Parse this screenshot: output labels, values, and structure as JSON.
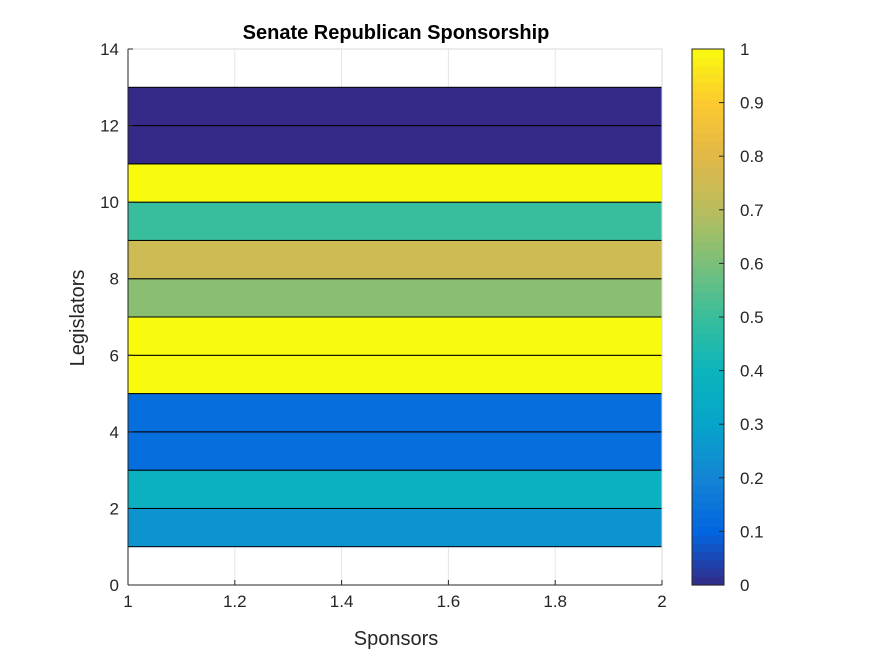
{
  "chart_data": {
    "type": "heatmap",
    "title": "Senate Republican Sponsorship",
    "xlabel": "Sponsors",
    "ylabel": "Legislators",
    "xlim": [
      1,
      2
    ],
    "ylim": [
      0,
      14
    ],
    "x_ticks": [
      "1",
      "1.2",
      "1.4",
      "1.6",
      "1.8",
      "2"
    ],
    "y_ticks": [
      "0",
      "2",
      "4",
      "6",
      "8",
      "10",
      "12",
      "14"
    ],
    "grid": true,
    "rows": [
      {
        "y0": 1,
        "y1": 2,
        "value": 0.25
      },
      {
        "y0": 2,
        "y1": 3,
        "value": 0.375
      },
      {
        "y0": 3,
        "y1": 4,
        "value": 0.125
      },
      {
        "y0": 4,
        "y1": 5,
        "value": 0.125
      },
      {
        "y0": 5,
        "y1": 6,
        "value": 1.0
      },
      {
        "y0": 6,
        "y1": 7,
        "value": 1.0
      },
      {
        "y0": 7,
        "y1": 8,
        "value": 0.625
      },
      {
        "y0": 8,
        "y1": 9,
        "value": 0.75
      },
      {
        "y0": 9,
        "y1": 10,
        "value": 0.5
      },
      {
        "y0": 10,
        "y1": 11,
        "value": 1.0
      },
      {
        "y0": 11,
        "y1": 12,
        "value": 0.0
      },
      {
        "y0": 12,
        "y1": 13,
        "value": 0.0
      }
    ],
    "colorbar": {
      "range": [
        0,
        1
      ],
      "ticks": [
        "0",
        "0.1",
        "0.2",
        "0.3",
        "0.4",
        "0.5",
        "0.6",
        "0.7",
        "0.8",
        "0.9",
        "1"
      ],
      "colormap": "parula",
      "location": "right"
    }
  }
}
